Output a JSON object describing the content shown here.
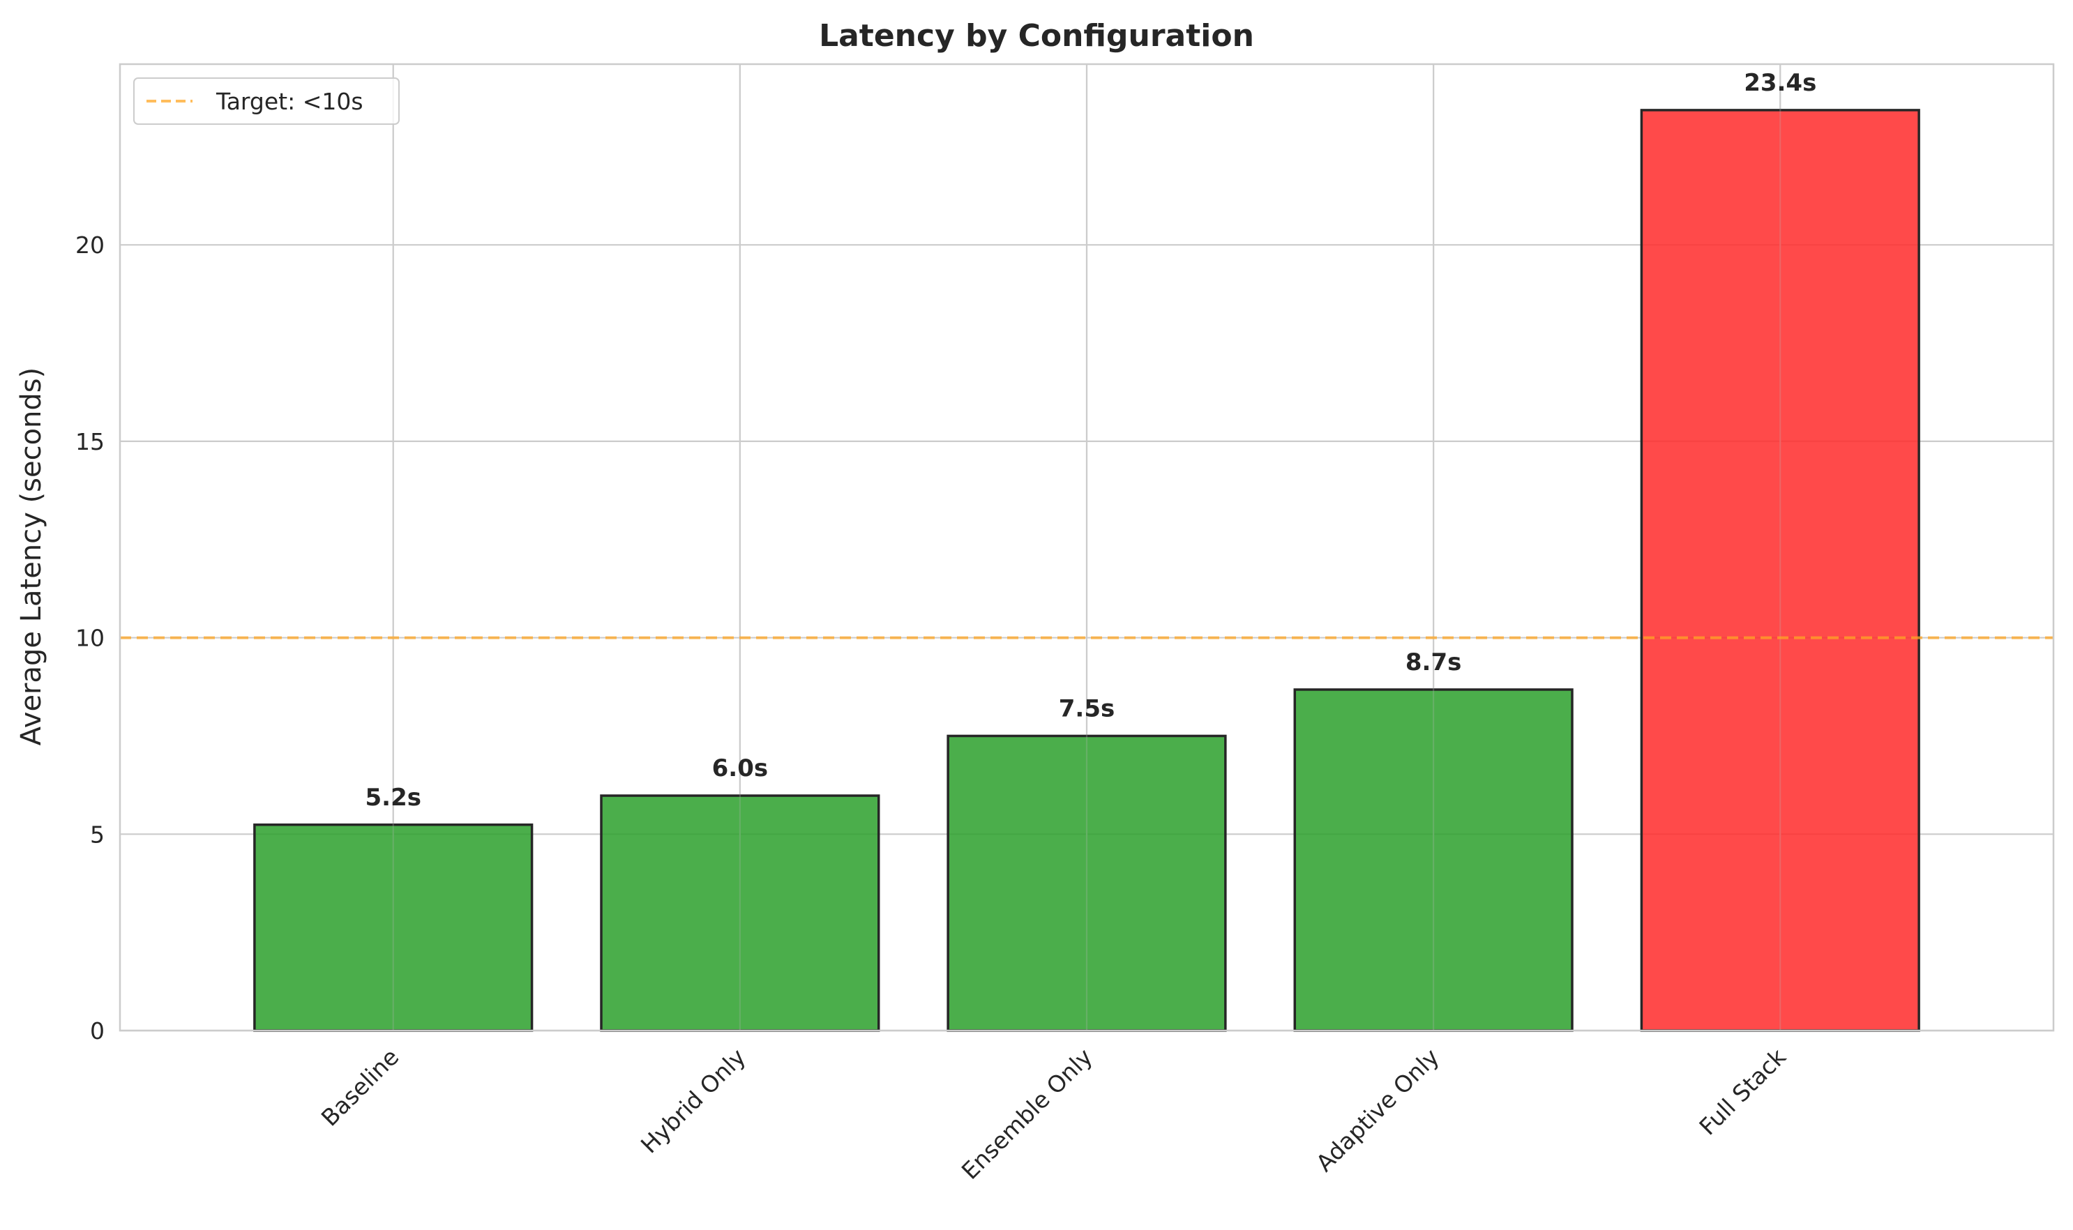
{
  "chart_data": {
    "type": "bar",
    "title": "Latency by Configuration",
    "xlabel": "",
    "ylabel": "Average Latency (seconds)",
    "categories": [
      "Baseline",
      "Hybrid Only",
      "Ensemble Only",
      "Adaptive Only",
      "Full Stack"
    ],
    "values": [
      5.24,
      5.98,
      7.5,
      8.68,
      23.43
    ],
    "value_labels": [
      "5.2s",
      "6.0s",
      "7.5s",
      "8.7s",
      "23.4s"
    ],
    "bar_colors": [
      "#2ca02c",
      "#2ca02c",
      "#2ca02c",
      "#2ca02c",
      "#ff2a2a"
    ],
    "ylim": [
      0,
      24.6
    ],
    "yticks": [
      0,
      5,
      10,
      15,
      20
    ],
    "grid": true,
    "reference_line": {
      "value": 10,
      "label": "Target: <10s",
      "color": "#ffa726",
      "style": "dashed"
    },
    "legend": {
      "placement": "top-left",
      "entries": [
        "Target: <10s"
      ]
    }
  }
}
